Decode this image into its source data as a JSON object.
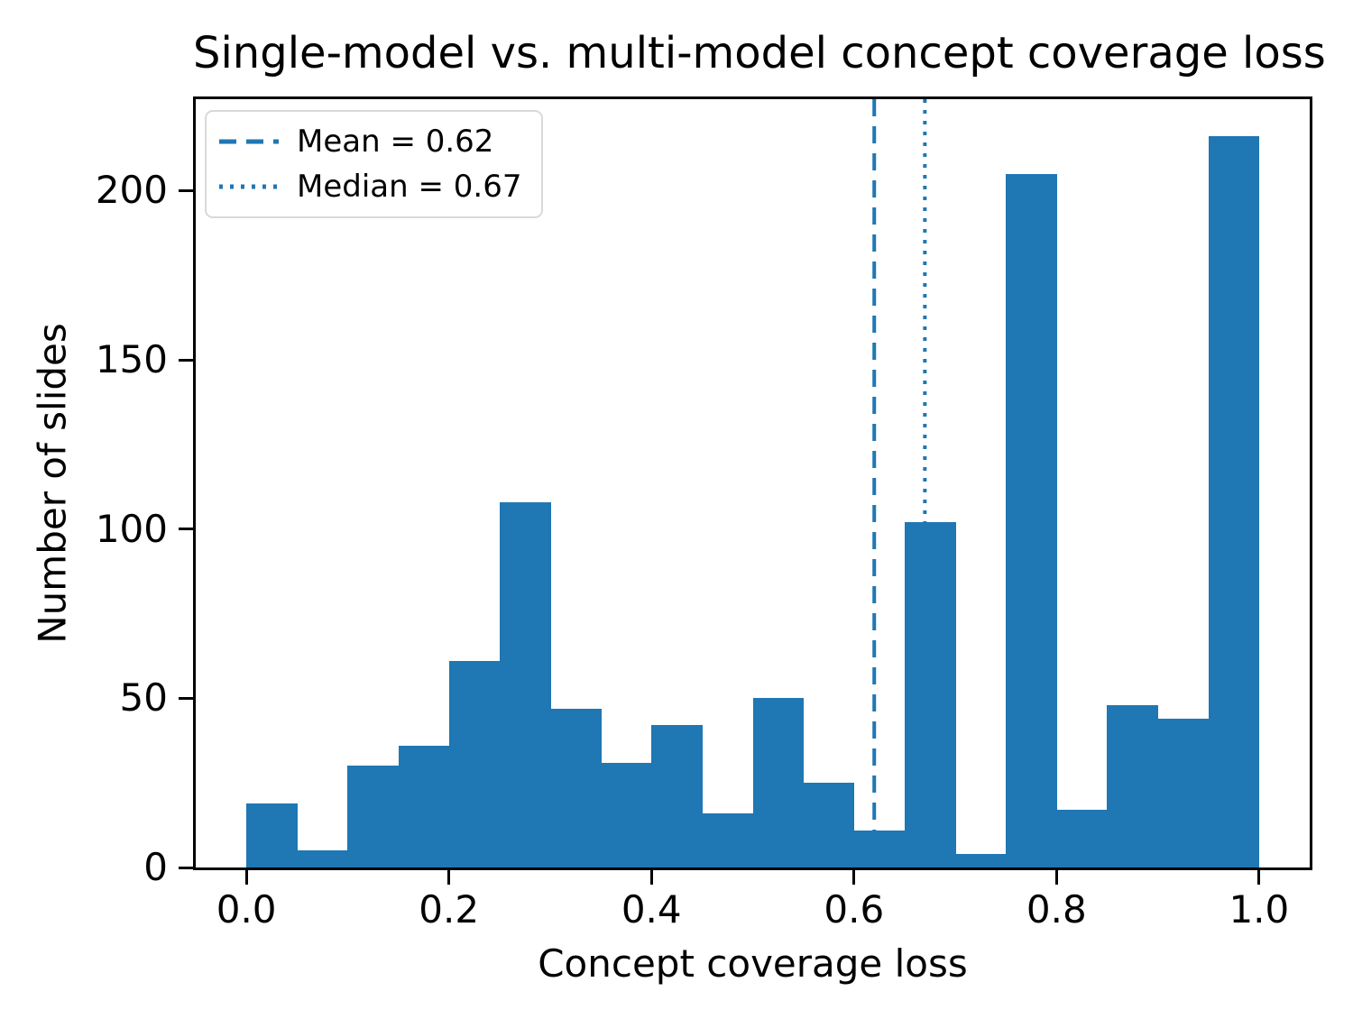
{
  "chart_data": {
    "type": "bar",
    "subtype": "histogram",
    "title": "Single-model vs. multi-model concept coverage loss",
    "xlabel": "Concept coverage loss",
    "ylabel": "Number of slides",
    "bin_start": 0.0,
    "bin_width": 0.05,
    "categories": [
      "0.00-0.05",
      "0.05-0.10",
      "0.10-0.15",
      "0.15-0.20",
      "0.20-0.25",
      "0.25-0.30",
      "0.30-0.35",
      "0.35-0.40",
      "0.40-0.45",
      "0.45-0.50",
      "0.50-0.55",
      "0.55-0.60",
      "0.60-0.65",
      "0.65-0.70",
      "0.70-0.75",
      "0.75-0.80",
      "0.80-0.85",
      "0.85-0.90",
      "0.90-0.95",
      "0.95-1.00"
    ],
    "values": [
      19,
      5,
      30,
      36,
      61,
      108,
      47,
      31,
      42,
      16,
      50,
      25,
      11,
      102,
      4,
      205,
      17,
      48,
      44,
      216
    ],
    "x_ticks": [
      0.0,
      0.2,
      0.4,
      0.6,
      0.8,
      1.0
    ],
    "x_tick_labels": [
      "0.0",
      "0.2",
      "0.4",
      "0.6",
      "0.8",
      "1.0"
    ],
    "y_ticks": [
      0,
      50,
      100,
      150,
      200
    ],
    "y_tick_labels": [
      "0",
      "50",
      "100",
      "150",
      "200"
    ],
    "xlim": [
      -0.05,
      1.05
    ],
    "ylim": [
      0,
      227
    ],
    "grid": false,
    "legend_position": "upper left",
    "bar_color": "#1f77b4",
    "annotations": [
      {
        "type": "vline",
        "value": 0.62,
        "style": "dashed",
        "label": "Mean = 0.62",
        "color": "#1f77b4"
      },
      {
        "type": "vline",
        "value": 0.67,
        "style": "dotted",
        "label": "Median = 0.67",
        "color": "#1f77b4"
      }
    ]
  }
}
